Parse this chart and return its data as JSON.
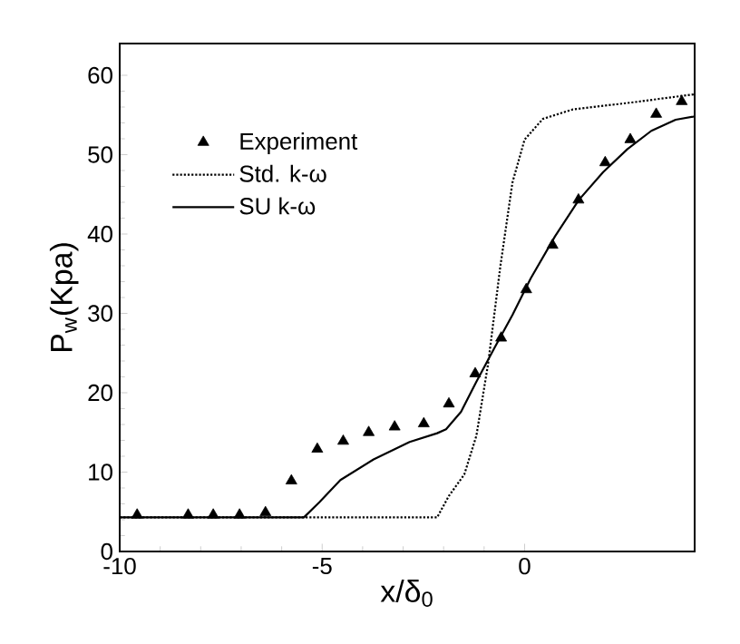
{
  "chart_data": {
    "type": "line",
    "xlabel": "x/δ$_{0}$",
    "ylabel": "P$_{w}$(Kpa)",
    "xlim": [
      -10,
      4.2
    ],
    "ylim": [
      0,
      64
    ],
    "xticks": [
      -10,
      -5,
      0
    ],
    "yticks": [
      0,
      10,
      20,
      30,
      40,
      50,
      60
    ],
    "grid": false,
    "legend": "top left",
    "series": [
      {
        "name": "Experiment",
        "type": "scatter",
        "marker": "triangle",
        "color": "#000000",
        "x": [
          -9.57,
          -8.31,
          -7.69,
          -7.04,
          -6.4,
          -5.76,
          -5.12,
          -4.48,
          -3.85,
          -3.21,
          -2.49,
          -1.87,
          -1.22,
          -0.58,
          0.04,
          0.69,
          1.33,
          1.99,
          2.61,
          3.25,
          3.88
        ],
        "values": [
          4.6,
          4.6,
          4.6,
          4.6,
          4.9,
          8.9,
          12.9,
          13.9,
          15.0,
          15.7,
          16.1,
          18.6,
          22.4,
          26.9,
          33.0,
          38.6,
          44.3,
          49.0,
          51.9,
          55.1,
          56.7
        ]
      },
      {
        "name": "Std. k-ω",
        "line_style": "dotted",
        "color": "#000000",
        "x": [
          -10,
          -2.16,
          -1.87,
          -1.49,
          -1.19,
          -0.9,
          -0.6,
          -0.3,
          0,
          0.45,
          1.19,
          2.69,
          4.18
        ],
        "values": [
          4.3,
          4.3,
          7.0,
          9.7,
          14.6,
          23.7,
          35.9,
          46.5,
          51.9,
          54.5,
          55.7,
          56.6,
          57.6
        ]
      },
      {
        "name": "SU k-ω",
        "line_style": "solid",
        "color": "#000000",
        "x": [
          -10,
          -5.45,
          -5.07,
          -4.55,
          -3.73,
          -2.84,
          -2.16,
          -1.94,
          -1.57,
          -1.19,
          -0.75,
          -0.3,
          0.15,
          0.75,
          1.34,
          1.94,
          2.54,
          3.13,
          3.73,
          4.18
        ],
        "values": [
          4.3,
          4.3,
          6.2,
          9.0,
          11.6,
          13.8,
          14.9,
          15.4,
          17.6,
          21.4,
          25.6,
          29.8,
          34.4,
          39.7,
          44.3,
          47.8,
          50.7,
          53.0,
          54.4,
          54.8
        ]
      }
    ]
  }
}
